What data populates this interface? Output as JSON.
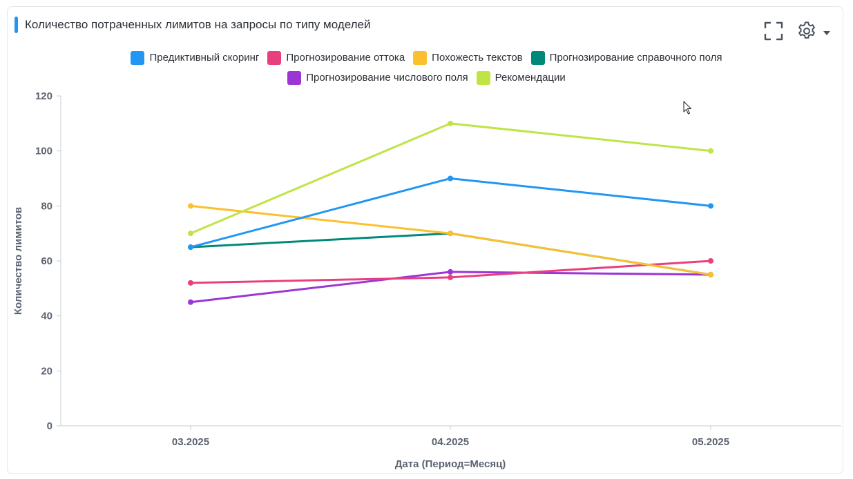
{
  "title": "Количество потраченных лимитов на запросы по типу моделей",
  "accent_color": "#2196f3",
  "toolbar": {
    "expand_icon": "fullscreen-icon",
    "settings_icon": "gear-icon",
    "dropdown_icon": "caret-down-icon"
  },
  "chart_data": {
    "type": "line",
    "title": "Количество потраченных лимитов на запросы по типу моделей",
    "xlabel": "Дата (Период=Месяц)",
    "ylabel": "Количество лимитов",
    "categories": [
      "03.2025",
      "04.2025",
      "05.2025"
    ],
    "ylim": [
      0,
      120
    ],
    "yticks": [
      0,
      20,
      40,
      60,
      80,
      100,
      120
    ],
    "grid": false,
    "legend_position": "top-center",
    "series": [
      {
        "name": "Предиктивный скоринг",
        "color": "#2196f3",
        "values": [
          65,
          90,
          80
        ]
      },
      {
        "name": "Прогнозирование оттока",
        "color": "#e8407f",
        "values": [
          52,
          54,
          60
        ]
      },
      {
        "name": "Похожесть текстов",
        "color": "#fbc02d",
        "values": [
          80,
          70,
          55
        ]
      },
      {
        "name": "Прогнозирование справочного поля",
        "color": "#00897b",
        "values": [
          65,
          70,
          55
        ]
      },
      {
        "name": "Прогнозирование числового поля",
        "color": "#9c35d6",
        "values": [
          45,
          56,
          55
        ]
      },
      {
        "name": "Рекомендации",
        "color": "#bfe445",
        "values": [
          70,
          110,
          100
        ]
      }
    ],
    "legend_rows": [
      [
        0,
        1,
        2,
        3
      ],
      [
        4,
        5
      ]
    ]
  }
}
